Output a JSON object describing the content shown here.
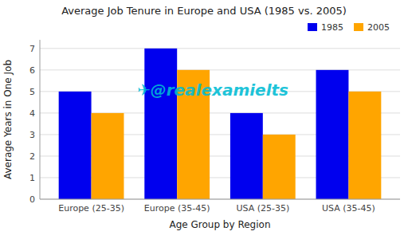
{
  "chart_data": {
    "type": "bar",
    "title": "Average Job Tenure in Europe and USA (1985 vs. 2005)",
    "xlabel": "Age Group by Region",
    "ylabel": "Average Years in One Job",
    "categories": [
      "Europe (25-35)",
      "Europe (35-45)",
      "USA (25-35)",
      "USA (35-45)"
    ],
    "series": [
      {
        "name": "1985",
        "color": "#0000ee",
        "values": [
          5,
          7,
          4,
          6
        ]
      },
      {
        "name": "2005",
        "color": "#ffa500",
        "values": [
          4,
          6,
          3,
          5
        ]
      }
    ],
    "ylim": [
      0,
      7.4
    ],
    "yticks": [
      0,
      1,
      2,
      3,
      4,
      5,
      6,
      7
    ],
    "grid": true,
    "legend": "upper right",
    "annotations": [
      {
        "text": "✈@realexamielts",
        "color": "#00bcd4"
      }
    ]
  }
}
